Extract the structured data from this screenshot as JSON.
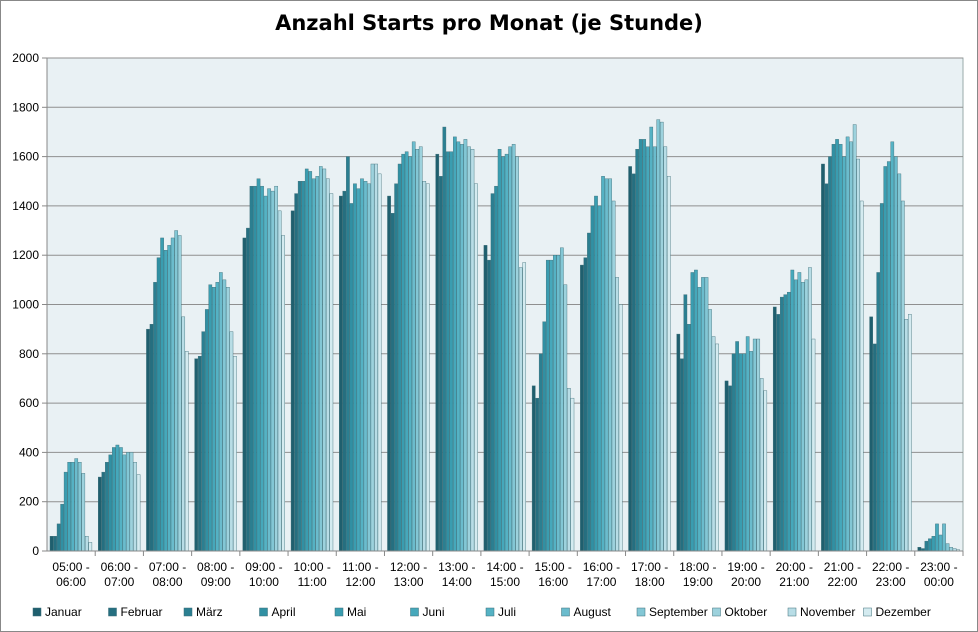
{
  "chart_data": {
    "type": "bar",
    "title": "Anzahl Starts pro Monat (je Stunde)",
    "xlabel": "",
    "ylabel": "",
    "ylim": [
      0,
      2000
    ],
    "yticks": [
      0,
      200,
      400,
      600,
      800,
      1000,
      1200,
      1400,
      1600,
      1800,
      2000
    ],
    "grid": true,
    "legend_position": "bottom",
    "categories": [
      [
        "05:00 -",
        "06:00"
      ],
      [
        "06:00 -",
        "07:00"
      ],
      [
        "07:00 -",
        "08:00"
      ],
      [
        "08:00 -",
        "09:00"
      ],
      [
        "09:00 -",
        "10:00"
      ],
      [
        "10:00 -",
        "11:00"
      ],
      [
        "11:00 -",
        "12:00"
      ],
      [
        "12:00 -",
        "13:00"
      ],
      [
        "13:00 -",
        "14:00"
      ],
      [
        "14:00 -",
        "15:00"
      ],
      [
        "15:00 -",
        "16:00"
      ],
      [
        "16:00 -",
        "17:00"
      ],
      [
        "17:00 -",
        "18:00"
      ],
      [
        "18:00 -",
        "19:00"
      ],
      [
        "19:00 -",
        "20:00"
      ],
      [
        "20:00 -",
        "21:00"
      ],
      [
        "21:00 -",
        "22:00"
      ],
      [
        "22:00 -",
        "23:00"
      ],
      [
        "23:00 -",
        "00:00"
      ]
    ],
    "series": [
      {
        "name": "Januar",
        "color": "#1f5f6e",
        "values": [
          60,
          300,
          900,
          780,
          1270,
          1380,
          1440,
          1440,
          1610,
          1240,
          670,
          1160,
          1560,
          880,
          690,
          990,
          1570,
          950,
          15
        ]
      },
      {
        "name": "Februar",
        "color": "#256f80",
        "values": [
          60,
          320,
          920,
          790,
          1310,
          1450,
          1460,
          1370,
          1520,
          1180,
          620,
          1190,
          1530,
          780,
          670,
          960,
          1490,
          840,
          10
        ]
      },
      {
        "name": "März",
        "color": "#2b7f91",
        "values": [
          110,
          360,
          1090,
          890,
          1480,
          1500,
          1600,
          1490,
          1720,
          1450,
          800,
          1290,
          1630,
          1040,
          800,
          1030,
          1600,
          1130,
          40
        ]
      },
      {
        "name": "April",
        "color": "#3190a3",
        "values": [
          190,
          390,
          1190,
          980,
          1480,
          1500,
          1410,
          1570,
          1620,
          1480,
          930,
          1400,
          1670,
          920,
          850,
          1040,
          1650,
          1410,
          50
        ]
      },
      {
        "name": "Mai",
        "color": "#3a9db0",
        "values": [
          320,
          420,
          1270,
          1080,
          1510,
          1550,
          1490,
          1610,
          1620,
          1630,
          1180,
          1440,
          1670,
          1130,
          800,
          1050,
          1670,
          1560,
          60
        ]
      },
      {
        "name": "Juni",
        "color": "#46a8bb",
        "values": [
          360,
          430,
          1220,
          1070,
          1480,
          1540,
          1470,
          1620,
          1680,
          1600,
          1180,
          1400,
          1640,
          1140,
          800,
          1140,
          1650,
          1580,
          110
        ]
      },
      {
        "name": "Juli",
        "color": "#55b2c4",
        "values": [
          360,
          420,
          1240,
          1090,
          1440,
          1510,
          1510,
          1600,
          1660,
          1610,
          1200,
          1520,
          1720,
          1070,
          870,
          1100,
          1600,
          1660,
          65
        ]
      },
      {
        "name": "August",
        "color": "#6bbccd",
        "values": [
          375,
          390,
          1270,
          1130,
          1470,
          1520,
          1500,
          1660,
          1650,
          1640,
          1200,
          1510,
          1640,
          1110,
          810,
          1130,
          1680,
          1600,
          110
        ]
      },
      {
        "name": "September",
        "color": "#83c7d5",
        "values": [
          360,
          400,
          1300,
          1100,
          1460,
          1560,
          1490,
          1630,
          1670,
          1650,
          1230,
          1510,
          1750,
          1110,
          860,
          1090,
          1660,
          1530,
          30
        ]
      },
      {
        "name": "Oktober",
        "color": "#9dd2dd",
        "values": [
          315,
          400,
          1280,
          1070,
          1480,
          1550,
          1570,
          1640,
          1640,
          1600,
          1080,
          1420,
          1740,
          980,
          860,
          1100,
          1730,
          1420,
          15
        ]
      },
      {
        "name": "November",
        "color": "#b8dde6",
        "values": [
          60,
          360,
          950,
          890,
          1380,
          1510,
          1570,
          1500,
          1630,
          1150,
          660,
          1110,
          1640,
          870,
          700,
          1150,
          1590,
          940,
          10
        ]
      },
      {
        "name": "Dezember",
        "color": "#d4ebf0",
        "values": [
          35,
          310,
          810,
          790,
          1280,
          1450,
          1530,
          1490,
          1490,
          1170,
          620,
          1000,
          1520,
          840,
          650,
          860,
          1420,
          960,
          5
        ]
      }
    ]
  }
}
